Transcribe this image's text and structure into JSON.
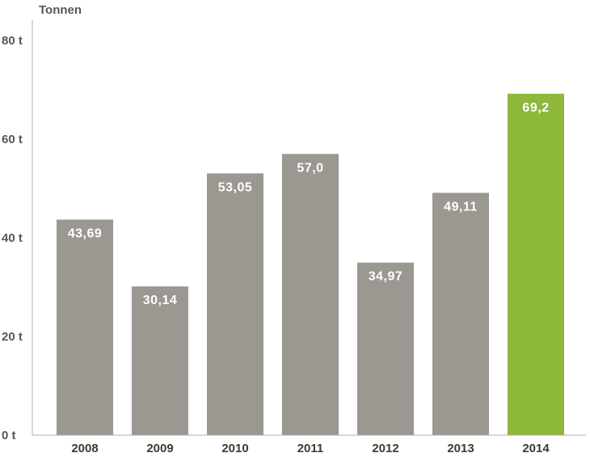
{
  "chart_data": {
    "type": "bar",
    "title": "",
    "xlabel": "",
    "ylabel": "Tonnen",
    "ylim": [
      0,
      80
    ],
    "yticks": [
      0,
      20,
      40,
      60,
      80
    ],
    "ytick_labels": [
      "0 t",
      "20 t",
      "40 t",
      "60 t",
      "80 t"
    ],
    "categories": [
      "2008",
      "2009",
      "2010",
      "2011",
      "2012",
      "2013",
      "2014"
    ],
    "values": [
      43.69,
      30.14,
      53.05,
      57.0,
      34.97,
      49.11,
      69.2
    ],
    "value_labels": [
      "43,69",
      "30,14",
      "53,05",
      "57,0",
      "34,97",
      "49,11",
      "69,2"
    ],
    "colors": [
      "#9b9791",
      "#9b9791",
      "#9b9791",
      "#9b9791",
      "#9b9791",
      "#9b9791",
      "#8db83a"
    ],
    "axis_color": "#b3aea8"
  }
}
